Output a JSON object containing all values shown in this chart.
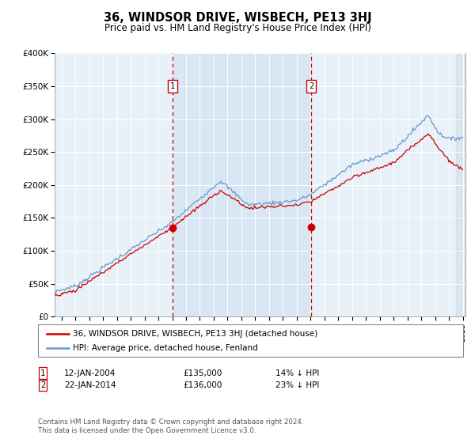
{
  "title": "36, WINDSOR DRIVE, WISBECH, PE13 3HJ",
  "subtitle": "Price paid vs. HM Land Registry's House Price Index (HPI)",
  "legend_line1": "36, WINDSOR DRIVE, WISBECH, PE13 3HJ (detached house)",
  "legend_line2": "HPI: Average price, detached house, Fenland",
  "annotation1_label": "1",
  "annotation1_date": "12-JAN-2004",
  "annotation1_price": "£135,000",
  "annotation1_hpi": "14% ↓ HPI",
  "annotation1_year": 2004.04,
  "annotation1_price_val": 135000,
  "annotation2_label": "2",
  "annotation2_date": "22-JAN-2014",
  "annotation2_price": "£136,000",
  "annotation2_hpi": "23% ↓ HPI",
  "annotation2_year": 2014.06,
  "annotation2_price_val": 136000,
  "sale_color": "#cc0000",
  "hpi_color": "#6699cc",
  "vline_color": "#cc0000",
  "shade_color": "#ddeeff",
  "ylim": [
    0,
    400000
  ],
  "yticks": [
    0,
    50000,
    100000,
    150000,
    200000,
    250000,
    300000,
    350000,
    400000
  ],
  "ytick_labels": [
    "£0",
    "£50K",
    "£100K",
    "£150K",
    "£200K",
    "£250K",
    "£300K",
    "£350K",
    "£400K"
  ],
  "xlim_start": 1995.5,
  "xlim_end": 2025.2,
  "plot_bg": "#e8f0f8",
  "footer": "Contains HM Land Registry data © Crown copyright and database right 2024.\nThis data is licensed under the Open Government Licence v3.0.",
  "marker_y": 350000,
  "hatch_start": 2024.5,
  "shade_start": 2004.04,
  "shade_end": 2014.06
}
